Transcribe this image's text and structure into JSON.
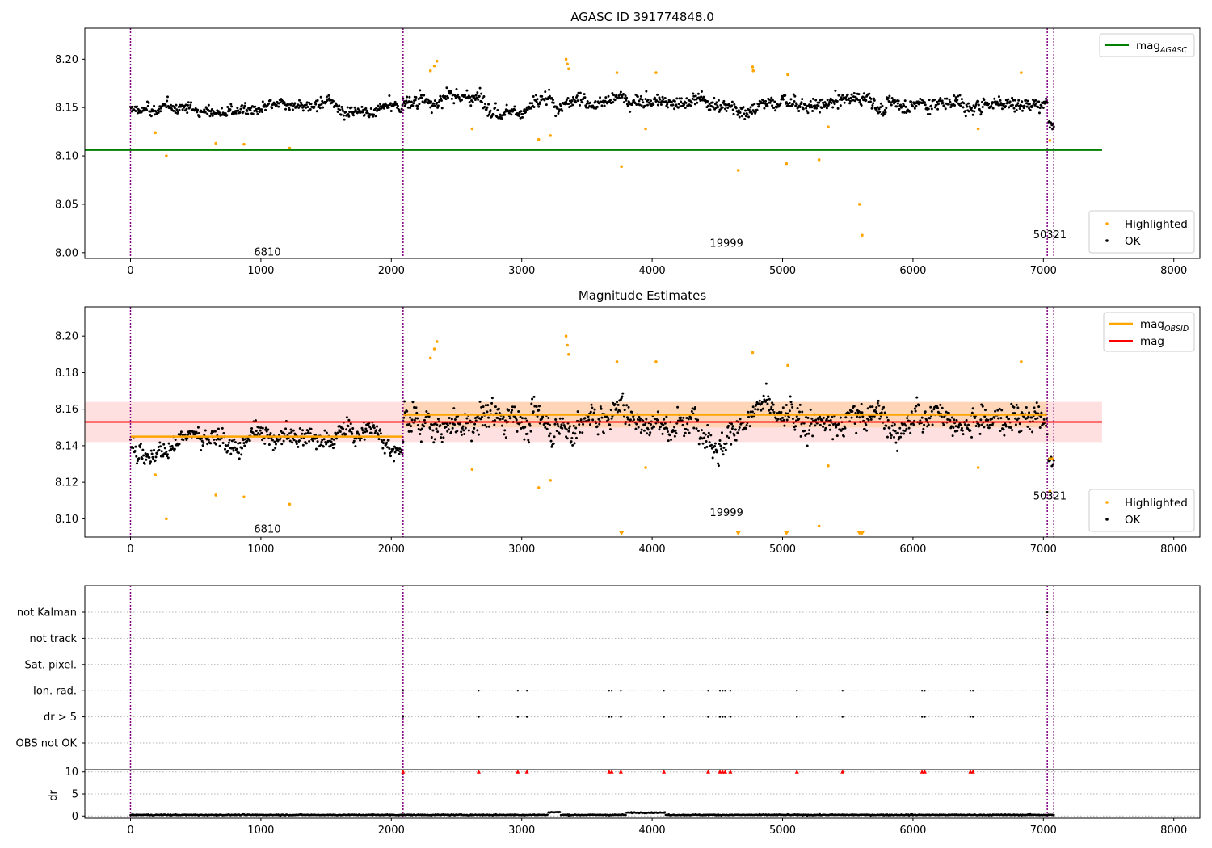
{
  "figure": {
    "title": "AGASC ID 391774848.0",
    "colors": {
      "ok": "#000000",
      "highlighted": "#ffa500",
      "mag_agasc": "#008000",
      "mag_obsid": "#ffa500",
      "mag": "#ff0000",
      "obs_boundary": "#800080",
      "dr_flag": "#ff0000"
    },
    "observation_boundaries": [
      0,
      2090,
      7030,
      7080
    ],
    "obsid_labels": [
      {
        "text": "6810",
        "x": 1050
      },
      {
        "text": "19999",
        "x": 4570
      },
      {
        "text": "50321",
        "x": 7050
      }
    ]
  },
  "chart_data": [
    {
      "type": "scatter",
      "title": "AGASC ID 391774848.0",
      "xlim": [
        -350,
        8200
      ],
      "ylim": [
        7.994,
        8.232
      ],
      "xticks": [
        0,
        1000,
        2000,
        3000,
        4000,
        5000,
        6000,
        7000,
        8000
      ],
      "yticks": [
        8.0,
        8.05,
        8.1,
        8.15,
        8.2
      ],
      "ytick_labels": [
        "8.00",
        "8.05",
        "8.10",
        "8.15",
        "8.20"
      ],
      "lines": [
        {
          "name": "mag",
          "subscript": "AGASC",
          "y": 8.106,
          "x_range": [
            -350,
            7450
          ],
          "color": "#008000"
        }
      ],
      "scatter_series": [
        {
          "name": "Highlighted",
          "color": "#ffa500"
        },
        {
          "name": "OK",
          "color": "#000000"
        }
      ],
      "ok_segments": [
        {
          "x_range": [
            0,
            2090
          ],
          "mean": 8.147,
          "noise": 0.006
        },
        {
          "x_range": [
            2090,
            7030
          ],
          "mean": 8.157,
          "noise": 0.008
        },
        {
          "x_range": [
            7040,
            7080
          ],
          "mean": 8.133,
          "noise": 0.004
        }
      ],
      "highlighted_points": [
        [
          190,
          8.124
        ],
        [
          275,
          8.1
        ],
        [
          655,
          8.113
        ],
        [
          870,
          8.112
        ],
        [
          1220,
          8.108
        ],
        [
          2300,
          8.188
        ],
        [
          2330,
          8.193
        ],
        [
          2350,
          8.198
        ],
        [
          2620,
          8.128
        ],
        [
          3130,
          8.117
        ],
        [
          3220,
          8.121
        ],
        [
          3340,
          8.2
        ],
        [
          3350,
          8.195
        ],
        [
          3360,
          8.19
        ],
        [
          3730,
          8.186
        ],
        [
          3765,
          8.089
        ],
        [
          3950,
          8.128
        ],
        [
          4030,
          8.186
        ],
        [
          4660,
          8.085
        ],
        [
          4770,
          8.192
        ],
        [
          4775,
          8.188
        ],
        [
          5040,
          8.184
        ],
        [
          5030,
          8.092
        ],
        [
          5280,
          8.096
        ],
        [
          5350,
          8.13
        ],
        [
          5590,
          8.05
        ],
        [
          5610,
          8.018
        ],
        [
          6500,
          8.128
        ],
        [
          6830,
          8.186
        ],
        [
          7050,
          8.116
        ]
      ],
      "legend": {
        "upper": "top-right",
        "lower": "bottom-right"
      }
    },
    {
      "type": "scatter",
      "title": "Magnitude Estimates",
      "xlim": [
        -350,
        8200
      ],
      "ylim": [
        8.09,
        8.216
      ],
      "xticks": [
        0,
        1000,
        2000,
        3000,
        4000,
        5000,
        6000,
        7000,
        8000
      ],
      "yticks": [
        8.1,
        8.12,
        8.14,
        8.16,
        8.18,
        8.2
      ],
      "ytick_labels": [
        "8.10",
        "8.12",
        "8.14",
        "8.16",
        "8.18",
        "8.20"
      ],
      "lines": [
        {
          "name": "mag",
          "subscript": "OBSID",
          "color": "#ffa500",
          "segments": [
            {
              "x_range": [
                0,
                2090
              ],
              "y": 8.145
            },
            {
              "x_range": [
                2090,
                7030
              ],
              "y": 8.157
            },
            {
              "x_range": [
                7040,
                7080
              ],
              "y": 8.133
            }
          ]
        },
        {
          "name": "mag",
          "color": "#ff0000",
          "y": 8.153,
          "x_range": [
            -350,
            7450
          ],
          "band": [
            8.142,
            8.164
          ]
        }
      ],
      "obsid_bands": [
        {
          "x_range": [
            2090,
            7030
          ],
          "band": [
            8.15,
            8.164
          ]
        }
      ],
      "scatter_series": [
        {
          "name": "Highlighted",
          "color": "#ffa500"
        },
        {
          "name": "OK",
          "color": "#000000"
        }
      ],
      "ok_segments": [
        {
          "x_range": [
            0,
            2090
          ],
          "mean": 8.146,
          "noise": 0.006
        },
        {
          "x_range": [
            2090,
            7030
          ],
          "mean": 8.156,
          "noise": 0.008
        },
        {
          "x_range": [
            7040,
            7080
          ],
          "mean": 8.13,
          "noise": 0.004
        }
      ],
      "highlighted_points": [
        [
          190,
          8.124
        ],
        [
          275,
          8.1
        ],
        [
          655,
          8.113
        ],
        [
          870,
          8.112
        ],
        [
          1220,
          8.108
        ],
        [
          2300,
          8.188
        ],
        [
          2330,
          8.193
        ],
        [
          2350,
          8.197
        ],
        [
          2620,
          8.127
        ],
        [
          3130,
          8.117
        ],
        [
          3220,
          8.121
        ],
        [
          3340,
          8.2
        ],
        [
          3350,
          8.195
        ],
        [
          3360,
          8.19
        ],
        [
          3730,
          8.186
        ],
        [
          3950,
          8.128
        ],
        [
          4030,
          8.186
        ],
        [
          4770,
          8.191
        ],
        [
          5040,
          8.184
        ],
        [
          5280,
          8.096
        ],
        [
          5350,
          8.129
        ],
        [
          6500,
          8.128
        ],
        [
          6830,
          8.186
        ],
        [
          7050,
          8.115
        ]
      ],
      "off_scale_low": [
        3765,
        4660,
        5030,
        5590,
        5610
      ],
      "legend": {
        "upper": "top-right",
        "lower": "bottom-right"
      }
    },
    {
      "type": "scatter",
      "title": "",
      "xlim": [
        -350,
        8200
      ],
      "flag_rows": [
        "not Kalman",
        "not track",
        "Sat. pixel.",
        "Ion. rad.",
        "dr > 5",
        "OBS not OK"
      ],
      "flag_points": {
        "not Kalman": [
          7030
        ],
        "not track": [],
        "Sat. pixel.": [],
        "Ion. rad.": [
          2090,
          2670,
          2970,
          3040,
          3670,
          3690,
          3760,
          4090,
          4430,
          4520,
          4540,
          4560,
          4600,
          5110,
          5460,
          6070,
          6090,
          6440,
          6460
        ],
        "dr > 5": [
          2090,
          2670,
          2970,
          3040,
          3670,
          3690,
          3760,
          4090,
          4430,
          4520,
          4540,
          4560,
          4600,
          5110,
          5460,
          6070,
          6090,
          6440,
          6460
        ],
        "OBS not OK": []
      }
    },
    {
      "type": "scatter",
      "title": "",
      "xlim": [
        -350,
        8200
      ],
      "ylim": [
        -0.5,
        10.5
      ],
      "yticks": [
        0,
        5,
        10
      ],
      "ytick_labels": [
        "0",
        "5",
        "10"
      ],
      "ylabel": "dr",
      "xticks": [
        0,
        1000,
        2000,
        3000,
        4000,
        5000,
        6000,
        7000,
        8000
      ],
      "dr_baseline": {
        "x_range": [
          0,
          7080
        ],
        "mean": 0.25,
        "noise": 0.15
      },
      "dr_flag_points": [
        2090,
        2670,
        2970,
        3040,
        3670,
        3690,
        3760,
        4090,
        4430,
        4520,
        4540,
        4560,
        4600,
        5110,
        5460,
        6070,
        6090,
        6440,
        6460
      ],
      "dr_flag_value": 10
    }
  ]
}
